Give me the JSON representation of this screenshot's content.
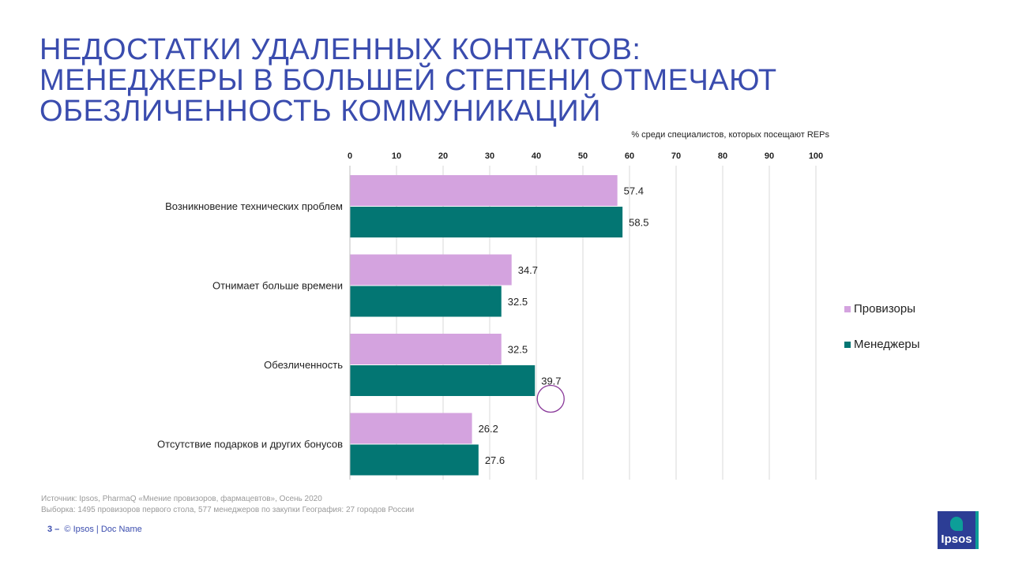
{
  "title": {
    "lines": [
      "НЕДОСТАТКИ УДАЛЕННЫХ КОНТАКТОВ:",
      "МЕНЕДЖЕРЫ В БОЛЬШЕЙ СТЕПЕНИ ОТМЕЧАЮТ",
      "ОБЕЗЛИЧЕННОСТЬ КОММУНИКАЦИЙ"
    ]
  },
  "chart_data": {
    "type": "bar",
    "orientation": "horizontal",
    "subtitle": "% среди специалистов, которых посещают REPs",
    "categories": [
      "Возникновение технических проблем",
      "Отнимает больше времени",
      "Обезличенность",
      "Отсутствие подарков и других бонусов"
    ],
    "series": [
      {
        "name": "Провизоры",
        "color": "#d4a3df",
        "values": [
          57.4,
          34.7,
          32.5,
          26.2
        ]
      },
      {
        "name": "Менеджеры",
        "color": "#037673",
        "values": [
          58.5,
          32.5,
          39.7,
          27.6
        ]
      }
    ],
    "xlim": [
      0,
      100
    ],
    "ticks": [
      0,
      10,
      20,
      30,
      40,
      50,
      60,
      70,
      80,
      90,
      100
    ],
    "tick_position": "top",
    "grid": true,
    "legend": "right",
    "highlight": {
      "category": "Обезличенность",
      "series": "Менеджеры",
      "color": "#8a3a9a"
    }
  },
  "source": {
    "line1": "Источник: Ipsos, PharmaQ «Мнение провизоров, фармацевтов», Осень 2020",
    "line2": "Выборка: 1495 провизоров первого стола, 577 менеджеров по закупки География: 27 городов России"
  },
  "footer": {
    "page": "3 –",
    "text": "© Ipsos | Doc Name"
  },
  "logo": {
    "text": "Ipsos"
  }
}
